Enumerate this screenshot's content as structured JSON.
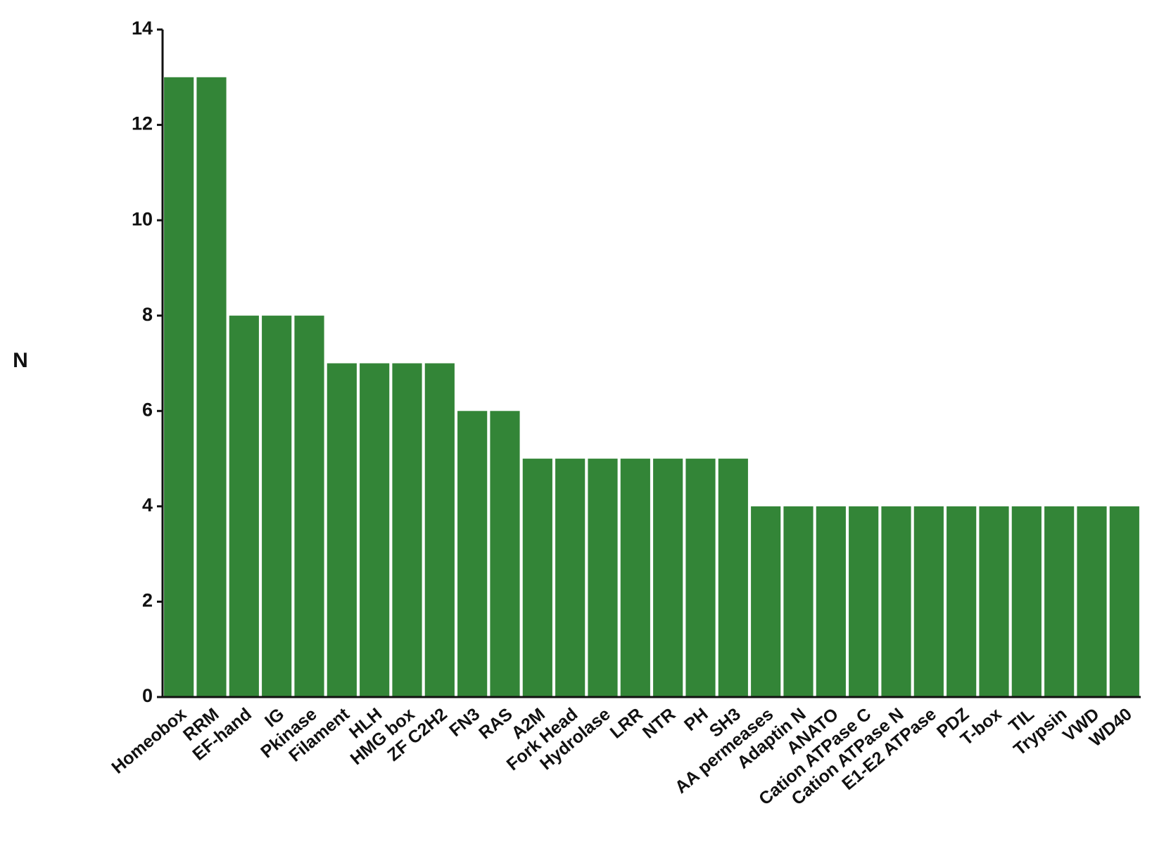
{
  "chart_data": {
    "type": "bar",
    "y_label": "N",
    "categories": [
      "Homeobox",
      "RRM",
      "EF-hand",
      "IG",
      "Pkinase",
      "Filament",
      "HLH",
      "HMG box",
      "ZF C2H2",
      "FN3",
      "RAS",
      "A2M",
      "Fork Head",
      "Hydrolase",
      "LRR",
      "NTR",
      "PH",
      "SH3",
      "AA permeases",
      "Adaptin N",
      "ANATO",
      "Cation ATPase C",
      "Cation ATPase N",
      "E1-E2 ATPase",
      "PDZ",
      "T-box",
      "TIL",
      "Trypsin",
      "VWD",
      "WD40"
    ],
    "values": [
      13,
      13,
      8,
      8,
      8,
      7,
      7,
      7,
      7,
      6,
      6,
      5,
      5,
      5,
      5,
      5,
      5,
      5,
      4,
      4,
      4,
      4,
      4,
      4,
      4,
      4,
      4,
      4,
      4,
      4
    ],
    "color": "#338537",
    "ylim": [
      0,
      14
    ],
    "yticks": [
      0,
      2,
      4,
      6,
      8,
      10,
      12,
      14
    ],
    "grid": false
  }
}
